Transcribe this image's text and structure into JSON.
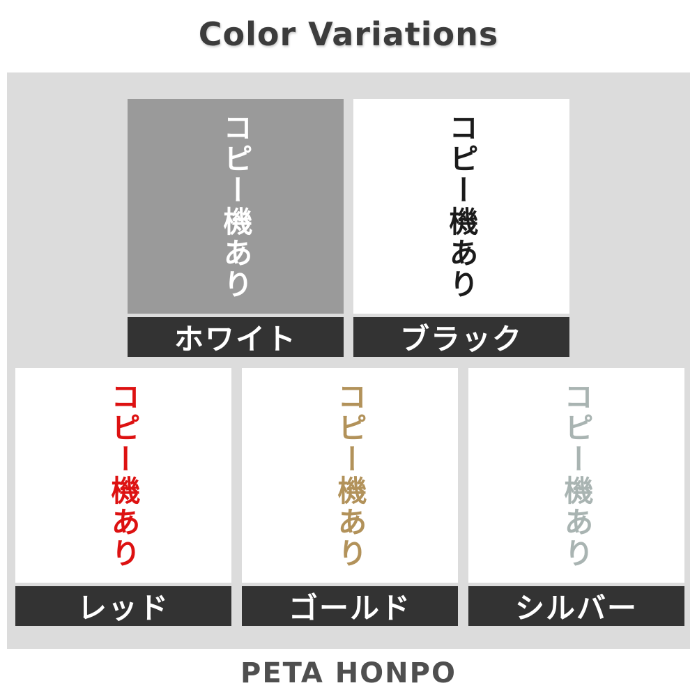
{
  "title": "Color Variations",
  "brand": "PETA HONPO",
  "tiles": [
    {
      "name": "white",
      "label": "ホワイト",
      "text": "コピー機あり",
      "text_color": "#ffffff",
      "swatch_bg": "#9a9a9a"
    },
    {
      "name": "black",
      "label": "ブラック",
      "text": "コピー機あり",
      "text_color": "#1b1b1b",
      "swatch_bg": "#ffffff"
    },
    {
      "name": "red",
      "label": "レッド",
      "text": "コピー機あり",
      "text_color": "#dd1111",
      "swatch_bg": "#ffffff"
    },
    {
      "name": "gold",
      "label": "ゴールド",
      "text": "コピー機あり",
      "text_color": "#b2925a",
      "swatch_bg": "#ffffff"
    },
    {
      "name": "silver",
      "label": "シルバー",
      "text": "コピー機あり",
      "text_color": "#a9b4b2",
      "swatch_bg": "#ffffff"
    }
  ],
  "colors": {
    "page_bg": "#ffffff",
    "panel_bg": "#dcdcdc",
    "label_bar_bg": "#333333",
    "label_text": "#ffffff",
    "title_color": "#3c3c3c",
    "brand_color": "#4f4f4f"
  }
}
